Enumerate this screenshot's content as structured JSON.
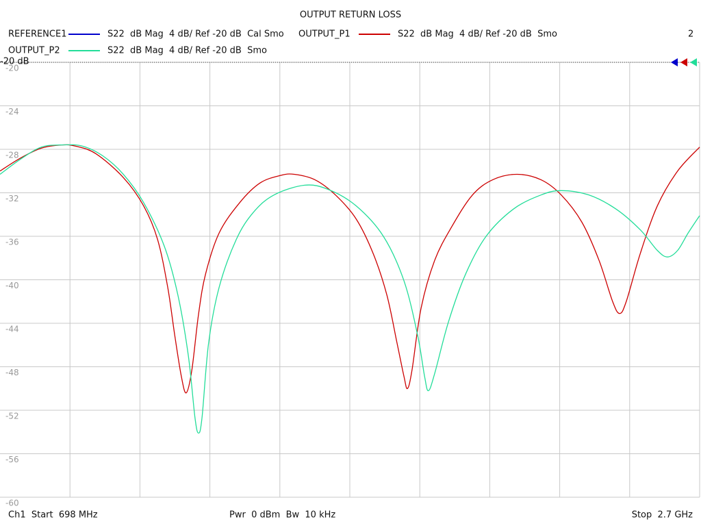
{
  "chart_data": {
    "type": "line",
    "title": "OUTPUT RETURN LOSS",
    "reference_label": "-20 dB",
    "trace_count": 2,
    "footer": {
      "start": "Ch1  Start  698 MHz",
      "power": "Pwr  0 dBm  Bw  10 kHz",
      "stop": "Stop  2.7 GHz"
    },
    "xlim": [
      698,
      2700
    ],
    "ylim": [
      -60,
      -20
    ],
    "yticks": [
      -20,
      -24,
      -28,
      -32,
      -36,
      -40,
      -44,
      -48,
      -52,
      -56,
      -60
    ],
    "grid": true,
    "series": [
      {
        "name": "REFERENCE1",
        "description": "S22  dB Mag  4 dB/ Ref -20 dB  Cal Smo",
        "color": "#0000cc"
      },
      {
        "name": "OUTPUT_P1",
        "description": "S22  dB Mag  4 dB/ Ref -20 dB  Smo",
        "color": "#cc0000",
        "x": [
          698,
          757,
          816,
          874,
          913,
          972,
          1051,
          1109,
          1149,
          1178,
          1198,
          1217,
          1231,
          1247,
          1266,
          1286,
          1325,
          1384,
          1442,
          1501,
          1540,
          1599,
          1658,
          1717,
          1766,
          1805,
          1834,
          1854,
          1864,
          1877,
          1903,
          1942,
          1991,
          2050,
          2108,
          2177,
          2246,
          2304,
          2363,
          2412,
          2451,
          2471,
          2490,
          2530,
          2579,
          2637,
          2700
        ],
        "values": [
          -30.0,
          -28.8,
          -27.9,
          -27.6,
          -27.7,
          -28.4,
          -30.6,
          -33.2,
          -36.3,
          -40.7,
          -45.1,
          -48.9,
          -50.4,
          -48.3,
          -43.2,
          -39.5,
          -35.7,
          -32.9,
          -31.1,
          -30.4,
          -30.3,
          -30.8,
          -32.2,
          -34.4,
          -37.6,
          -41.4,
          -45.8,
          -48.9,
          -50.0,
          -48.3,
          -42.6,
          -38.2,
          -35.1,
          -32.2,
          -30.8,
          -30.3,
          -30.8,
          -32.2,
          -34.7,
          -38.2,
          -42.0,
          -43.1,
          -42.0,
          -37.6,
          -33.2,
          -30.0,
          -27.8
        ]
      },
      {
        "name": "OUTPUT_P2",
        "description": "S22  dB Mag  4 dB/ Ref -20 dB  Smo",
        "color": "#22dd99",
        "x": [
          698,
          757,
          816,
          874,
          933,
          992,
          1051,
          1109,
          1168,
          1207,
          1237,
          1256,
          1266,
          1276,
          1295,
          1325,
          1374,
          1423,
          1482,
          1570,
          1638,
          1717,
          1795,
          1854,
          1893,
          1913,
          1924,
          1942,
          1981,
          2030,
          2089,
          2167,
          2246,
          2304,
          2383,
          2461,
          2530,
          2579,
          2608,
          2637,
          2667,
          2700
        ],
        "values": [
          -30.3,
          -28.9,
          -27.8,
          -27.6,
          -27.7,
          -28.6,
          -30.3,
          -32.9,
          -36.9,
          -41.4,
          -47.0,
          -52.7,
          -54.1,
          -52.7,
          -45.8,
          -40.7,
          -36.3,
          -33.8,
          -32.2,
          -31.3,
          -31.7,
          -33.2,
          -36.0,
          -40.1,
          -45.1,
          -48.9,
          -50.2,
          -48.6,
          -43.9,
          -39.5,
          -36.0,
          -33.5,
          -32.2,
          -31.8,
          -32.2,
          -33.5,
          -35.4,
          -37.3,
          -37.9,
          -37.3,
          -35.7,
          -34.1
        ]
      }
    ]
  }
}
